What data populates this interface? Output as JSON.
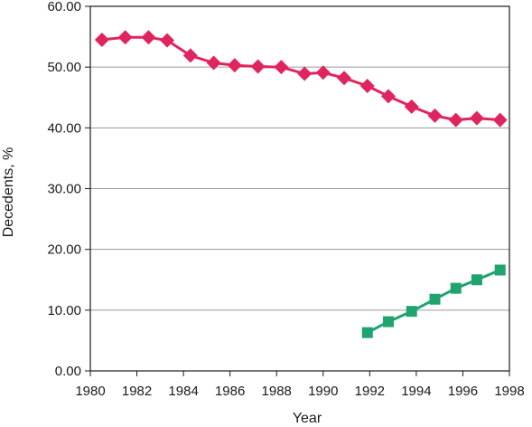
{
  "chart_data": {
    "type": "line",
    "xlabel": "Year",
    "ylabel": "Decedents, %",
    "xlim": [
      1980,
      1998
    ],
    "ylim": [
      0,
      60
    ],
    "x_ticks": [
      "1980",
      "1982",
      "1984",
      "1986",
      "1988",
      "1990",
      "1992",
      "1994",
      "1996",
      "1998"
    ],
    "y_ticks": [
      "0.00",
      "10.00",
      "20.00",
      "30.00",
      "40.00",
      "50.00",
      "60.00"
    ],
    "grid": "horizontal",
    "series": [
      {
        "marker": "diamond",
        "color": "#e0245e",
        "points": [
          [
            1980.5,
            54.5
          ],
          [
            1981.5,
            54.9
          ],
          [
            1982.5,
            54.9
          ],
          [
            1983.3,
            54.4
          ],
          [
            1984.3,
            51.9
          ],
          [
            1985.3,
            50.7
          ],
          [
            1986.2,
            50.3
          ],
          [
            1987.2,
            50.1
          ],
          [
            1988.2,
            50.0
          ],
          [
            1989.2,
            48.9
          ],
          [
            1990.0,
            49.1
          ],
          [
            1990.9,
            48.2
          ],
          [
            1991.9,
            46.9
          ],
          [
            1992.8,
            45.2
          ],
          [
            1993.8,
            43.5
          ],
          [
            1994.8,
            42.0
          ],
          [
            1995.7,
            41.3
          ],
          [
            1996.6,
            41.6
          ],
          [
            1997.6,
            41.3
          ]
        ]
      },
      {
        "marker": "square",
        "color": "#1fa36f",
        "points": [
          [
            1991.9,
            6.3
          ],
          [
            1992.8,
            8.1
          ],
          [
            1993.8,
            9.8
          ],
          [
            1994.8,
            11.8
          ],
          [
            1995.7,
            13.6
          ],
          [
            1996.6,
            15.0
          ],
          [
            1997.6,
            16.6
          ]
        ]
      }
    ]
  }
}
